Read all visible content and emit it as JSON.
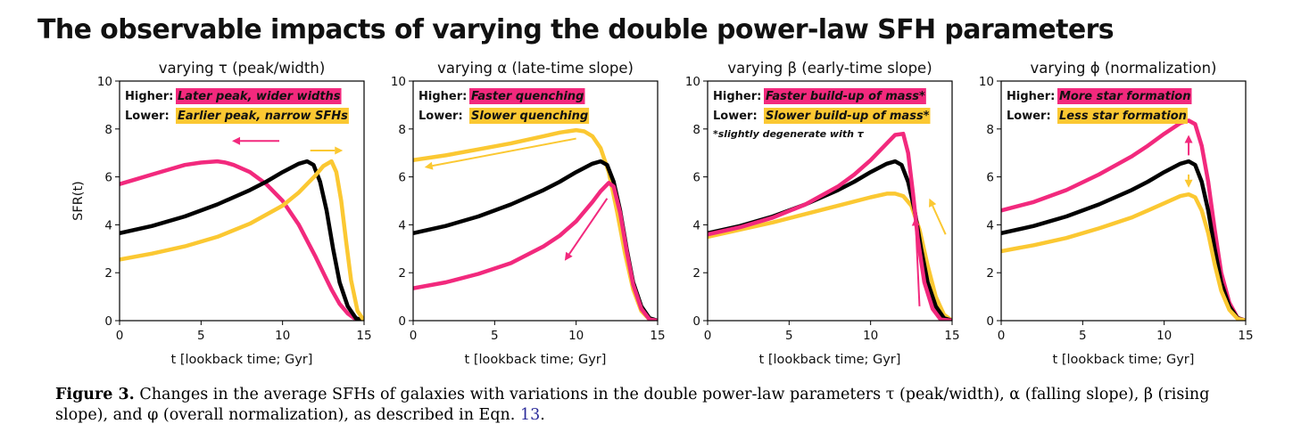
{
  "figure": {
    "title": "The observable impacts of varying the double power-law SFH parameters",
    "caption": {
      "label": "Figure 3.",
      "text": "Changes in the average SFHs of galaxies with variations in the double power-law parameters τ (peak/width), α (falling slope), β (rising slope), and φ (overall normalization), as described in Eqn.",
      "ref": "13",
      "end": "."
    }
  },
  "colors": {
    "baseline": "#000000",
    "higher": "#f2297d",
    "lower": "#fbc832"
  },
  "chart_data": [
    {
      "type": "line",
      "title": "varying τ (peak/width)",
      "xlabel": "t [lookback time; Gyr]",
      "ylabel": "SFR(t)",
      "xlim": [
        0,
        15
      ],
      "ylim": [
        0,
        10
      ],
      "xticks": [
        0,
        5,
        10,
        15
      ],
      "yticks": [
        0,
        2,
        4,
        6,
        8,
        10
      ],
      "legend": [
        {
          "prefix": "Higher:",
          "text": "Later peak, wider widths",
          "color": "#f2297d"
        },
        {
          "prefix": "Lower:",
          "text": "Earlier peak, narrow SFHs",
          "color": "#fbc832"
        }
      ],
      "note": "",
      "series": [
        {
          "color": "#f2297d",
          "x": [
            0,
            1,
            2,
            3,
            4,
            5,
            6,
            6.5,
            7,
            8,
            9,
            10,
            11,
            12,
            12.5,
            13,
            13.5,
            14,
            14.5,
            15
          ],
          "y": [
            5.7,
            5.9,
            6.1,
            6.3,
            6.5,
            6.6,
            6.65,
            6.6,
            6.5,
            6.2,
            5.7,
            5.0,
            4.0,
            2.7,
            2.0,
            1.3,
            0.7,
            0.3,
            0.05,
            0
          ]
        },
        {
          "color": "#000000",
          "x": [
            0,
            2,
            4,
            6,
            8,
            9,
            10,
            11,
            11.5,
            11.9,
            12.3,
            12.7,
            13.1,
            13.5,
            14,
            14.5,
            15
          ],
          "y": [
            3.65,
            3.95,
            4.35,
            4.85,
            5.45,
            5.8,
            6.2,
            6.55,
            6.65,
            6.5,
            5.8,
            4.6,
            3.0,
            1.6,
            0.6,
            0.1,
            0
          ]
        },
        {
          "color": "#fbc832",
          "x": [
            0,
            2,
            4,
            6,
            8,
            10,
            11,
            12,
            12.5,
            13,
            13.3,
            13.6,
            13.9,
            14.2,
            14.6,
            15
          ],
          "y": [
            2.55,
            2.8,
            3.1,
            3.5,
            4.05,
            4.8,
            5.35,
            6.05,
            6.45,
            6.65,
            6.2,
            5.0,
            3.3,
            1.7,
            0.4,
            0
          ]
        }
      ],
      "arrows": [
        {
          "color": "#f2297d",
          "from": [
            9.8,
            7.5
          ],
          "to": [
            6.9,
            7.5
          ]
        },
        {
          "color": "#fbc832",
          "from": [
            11.7,
            7.1
          ],
          "to": [
            13.7,
            7.1
          ]
        }
      ]
    },
    {
      "type": "line",
      "title": "varying α (late-time slope)",
      "xlabel": "t [lookback time; Gyr]",
      "ylabel": "",
      "xlim": [
        0,
        15
      ],
      "ylim": [
        0,
        10
      ],
      "xticks": [
        0,
        5,
        10,
        15
      ],
      "yticks": [
        0,
        2,
        4,
        6,
        8,
        10
      ],
      "legend": [
        {
          "prefix": "Higher:",
          "text": "Faster quenching",
          "color": "#f2297d"
        },
        {
          "prefix": "Lower:",
          "text": "Slower quenching",
          "color": "#fbc832"
        }
      ],
      "note": "",
      "series": [
        {
          "color": "#fbc832",
          "x": [
            0,
            2,
            4,
            6,
            8,
            9,
            10,
            10.5,
            11,
            11.5,
            12,
            12.5,
            13,
            13.5,
            14,
            14.5,
            15
          ],
          "y": [
            6.7,
            6.9,
            7.15,
            7.4,
            7.7,
            7.85,
            7.95,
            7.9,
            7.7,
            7.2,
            6.2,
            4.6,
            2.8,
            1.3,
            0.4,
            0.05,
            0
          ]
        },
        {
          "color": "#000000",
          "x": [
            0,
            2,
            4,
            6,
            8,
            9,
            10,
            11,
            11.5,
            11.9,
            12.3,
            12.7,
            13.1,
            13.5,
            14,
            14.5,
            15
          ],
          "y": [
            3.65,
            3.95,
            4.35,
            4.85,
            5.45,
            5.8,
            6.2,
            6.55,
            6.65,
            6.5,
            5.8,
            4.6,
            3.0,
            1.6,
            0.6,
            0.1,
            0
          ]
        },
        {
          "color": "#f2297d",
          "x": [
            0,
            2,
            4,
            6,
            8,
            9,
            10,
            11,
            11.5,
            12,
            12.3,
            12.7,
            13.1,
            13.5,
            14,
            14.5,
            15
          ],
          "y": [
            1.35,
            1.6,
            1.95,
            2.4,
            3.1,
            3.55,
            4.15,
            4.95,
            5.4,
            5.75,
            5.6,
            4.5,
            2.9,
            1.5,
            0.5,
            0.05,
            0
          ]
        }
      ],
      "arrows": [
        {
          "color": "#fbc832",
          "from": [
            10.0,
            7.6
          ],
          "to": [
            0.7,
            6.4
          ]
        },
        {
          "color": "#f2297d",
          "from": [
            11.9,
            5.1
          ],
          "to": [
            9.3,
            2.5
          ]
        }
      ]
    },
    {
      "type": "line",
      "title": "varying β (early-time slope)",
      "xlabel": "t [lookback time; Gyr]",
      "ylabel": "",
      "xlim": [
        0,
        15
      ],
      "ylim": [
        0,
        10
      ],
      "xticks": [
        0,
        5,
        10,
        15
      ],
      "yticks": [
        0,
        2,
        4,
        6,
        8,
        10
      ],
      "legend": [
        {
          "prefix": "Higher:",
          "text": "Faster build-up of mass*",
          "color": "#f2297d"
        },
        {
          "prefix": "Lower:",
          "text": "Slower build-up of mass*",
          "color": "#fbc832"
        }
      ],
      "note": "*slightly degenerate with τ",
      "series": [
        {
          "color": "#fbc832",
          "x": [
            0,
            2,
            4,
            6,
            8,
            10,
            11,
            11.5,
            12,
            12.5,
            13,
            13.5,
            14,
            14.5,
            15
          ],
          "y": [
            3.5,
            3.8,
            4.1,
            4.45,
            4.8,
            5.15,
            5.3,
            5.3,
            5.2,
            4.8,
            3.8,
            2.3,
            1.0,
            0.25,
            0
          ]
        },
        {
          "color": "#000000",
          "x": [
            0,
            2,
            4,
            6,
            8,
            9,
            10,
            11,
            11.5,
            11.9,
            12.3,
            12.7,
            13.1,
            13.5,
            14,
            14.5,
            15
          ],
          "y": [
            3.65,
            3.95,
            4.35,
            4.85,
            5.45,
            5.8,
            6.2,
            6.55,
            6.65,
            6.5,
            5.8,
            4.6,
            3.0,
            1.6,
            0.6,
            0.1,
            0
          ]
        },
        {
          "color": "#f2297d",
          "x": [
            0,
            2,
            4,
            6,
            8,
            9,
            10,
            11,
            11.5,
            12,
            12.3,
            12.6,
            12.9,
            13.3,
            13.8,
            14.3,
            15
          ],
          "y": [
            3.6,
            3.9,
            4.3,
            4.85,
            5.6,
            6.1,
            6.7,
            7.4,
            7.75,
            7.8,
            7.0,
            5.3,
            3.4,
            1.6,
            0.5,
            0.05,
            0
          ]
        }
      ],
      "arrows": [
        {
          "color": "#f2297d",
          "from": [
            13.0,
            0.6
          ],
          "to": [
            12.75,
            4.3
          ]
        },
        {
          "color": "#fbc832",
          "from": [
            14.6,
            3.6
          ],
          "to": [
            13.6,
            5.1
          ]
        }
      ]
    },
    {
      "type": "line",
      "title": "varying ϕ (normalization)",
      "xlabel": "t [lookback time; Gyr]",
      "ylabel": "",
      "xlim": [
        0,
        15
      ],
      "ylim": [
        0,
        10
      ],
      "xticks": [
        0,
        5,
        10,
        15
      ],
      "yticks": [
        0,
        2,
        4,
        6,
        8,
        10
      ],
      "legend": [
        {
          "prefix": "Higher:",
          "text": "More star formation",
          "color": "#f2297d"
        },
        {
          "prefix": "Lower:",
          "text": "Less star formation",
          "color": "#fbc832"
        }
      ],
      "note": "",
      "series": [
        {
          "color": "#f2297d",
          "x": [
            0,
            2,
            4,
            6,
            8,
            9,
            10,
            11,
            11.5,
            11.9,
            12.3,
            12.7,
            13.1,
            13.5,
            14,
            14.5,
            15
          ],
          "y": [
            4.6,
            4.95,
            5.45,
            6.1,
            6.85,
            7.3,
            7.8,
            8.25,
            8.35,
            8.2,
            7.3,
            5.8,
            3.8,
            2.0,
            0.75,
            0.12,
            0
          ]
        },
        {
          "color": "#000000",
          "x": [
            0,
            2,
            4,
            6,
            8,
            9,
            10,
            11,
            11.5,
            11.9,
            12.3,
            12.7,
            13.1,
            13.5,
            14,
            14.5,
            15
          ],
          "y": [
            3.65,
            3.95,
            4.35,
            4.85,
            5.45,
            5.8,
            6.2,
            6.55,
            6.65,
            6.5,
            5.8,
            4.6,
            3.0,
            1.6,
            0.6,
            0.1,
            0
          ]
        },
        {
          "color": "#fbc832",
          "x": [
            0,
            2,
            4,
            6,
            8,
            9,
            10,
            11,
            11.5,
            11.9,
            12.3,
            12.7,
            13.1,
            13.5,
            14,
            14.5,
            15
          ],
          "y": [
            2.9,
            3.15,
            3.45,
            3.85,
            4.3,
            4.6,
            4.9,
            5.2,
            5.27,
            5.15,
            4.6,
            3.65,
            2.35,
            1.25,
            0.45,
            0.08,
            0
          ]
        }
      ],
      "arrows": [
        {
          "color": "#f2297d",
          "from": [
            11.5,
            6.9
          ],
          "to": [
            11.5,
            7.75
          ]
        },
        {
          "color": "#fbc832",
          "from": [
            11.5,
            6.1
          ],
          "to": [
            11.5,
            5.55
          ]
        }
      ]
    }
  ]
}
